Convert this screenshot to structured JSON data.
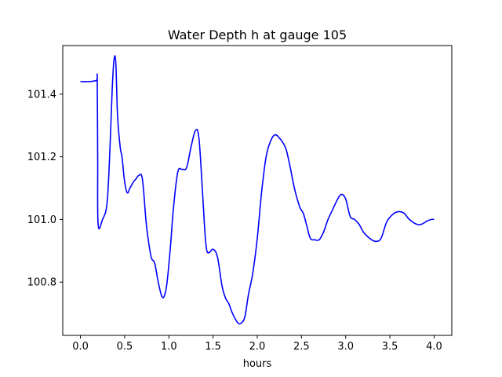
{
  "chart_data": {
    "type": "line",
    "title": "Water Depth h at gauge 105",
    "xlabel": "hours",
    "ylabel": "",
    "xlim": [
      -0.2,
      4.2
    ],
    "ylim": [
      100.63,
      101.555
    ],
    "xticks": [
      0.0,
      0.5,
      1.0,
      1.5,
      2.0,
      2.5,
      3.0,
      3.5,
      4.0
    ],
    "xtick_labels": [
      "0.0",
      "0.5",
      "1.0",
      "1.5",
      "2.0",
      "2.5",
      "3.0",
      "3.5",
      "4.0"
    ],
    "yticks": [
      100.8,
      101.0,
      101.2,
      101.4
    ],
    "ytick_labels": [
      "100.8",
      "101.0",
      "101.2",
      "101.4"
    ],
    "grid": false,
    "legend": "none",
    "series": [
      {
        "color": "#0000ff",
        "x": [
          0.0,
          0.1,
          0.18,
          0.19,
          0.195,
          0.2,
          0.25,
          0.3,
          0.33,
          0.36,
          0.38,
          0.4,
          0.42,
          0.45,
          0.47,
          0.5,
          0.53,
          0.56,
          0.6,
          0.63,
          0.66,
          0.7,
          0.74,
          0.76,
          0.8,
          0.84,
          0.88,
          0.92,
          0.95,
          0.98,
          1.02,
          1.05,
          1.1,
          1.15,
          1.2,
          1.25,
          1.3,
          1.34,
          1.38,
          1.41,
          1.43,
          1.46,
          1.5,
          1.55,
          1.6,
          1.64,
          1.68,
          1.72,
          1.78,
          1.82,
          1.86,
          1.9,
          1.95,
          2.0,
          2.05,
          2.1,
          2.15,
          2.2,
          2.25,
          2.3,
          2.33,
          2.37,
          2.42,
          2.48,
          2.52,
          2.56,
          2.6,
          2.65,
          2.7,
          2.75,
          2.8,
          2.85,
          2.9,
          2.95,
          3.0,
          3.05,
          3.1,
          3.15,
          3.2,
          3.27,
          3.34,
          3.4,
          3.46,
          3.51,
          3.55,
          3.6,
          3.66,
          3.72,
          3.8,
          3.86,
          3.92,
          3.97,
          4.0
        ],
        "y": [
          101.44,
          101.44,
          101.443,
          101.445,
          101.2,
          100.985,
          101.0,
          101.05,
          101.2,
          101.42,
          101.51,
          101.5,
          101.33,
          101.23,
          101.2,
          101.12,
          101.085,
          101.1,
          101.12,
          101.13,
          101.14,
          101.13,
          101.0,
          100.95,
          100.88,
          100.86,
          100.8,
          100.755,
          100.757,
          100.8,
          100.92,
          101.03,
          101.15,
          101.16,
          101.165,
          101.23,
          101.283,
          101.26,
          101.09,
          100.95,
          100.9,
          100.895,
          100.905,
          100.88,
          100.79,
          100.75,
          100.73,
          100.7,
          100.67,
          100.67,
          100.69,
          100.76,
          100.83,
          100.94,
          101.09,
          101.2,
          101.25,
          101.27,
          101.26,
          101.24,
          101.22,
          101.17,
          101.1,
          101.04,
          101.02,
          100.98,
          100.94,
          100.935,
          100.935,
          100.96,
          101.0,
          101.03,
          101.06,
          101.08,
          101.065,
          101.01,
          101.0,
          100.985,
          100.96,
          100.94,
          100.93,
          100.94,
          100.99,
          101.01,
          101.02,
          101.025,
          101.02,
          101.0,
          100.985,
          100.985,
          100.995,
          101.0,
          101.0
        ]
      }
    ]
  }
}
